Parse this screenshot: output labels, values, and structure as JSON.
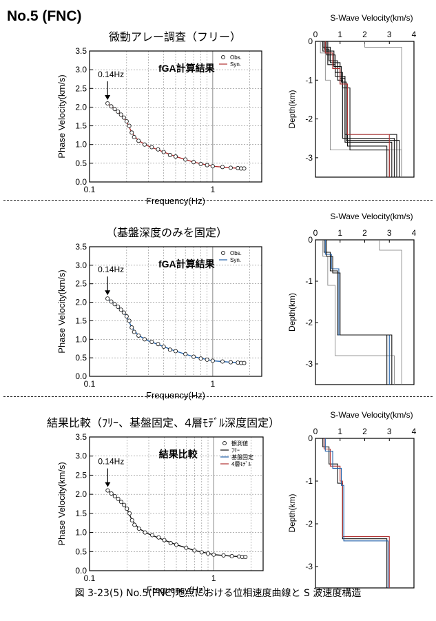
{
  "document": {
    "title": "No.5 (FNC)",
    "caption": "図 3-23(5)  No.5(FNC)地点における位相速度曲線と S 波速度構造"
  },
  "colors": {
    "obs": "#222222",
    "syn_red": "#b03030",
    "syn_blue": "#1f5fa8",
    "grid": "#888888"
  },
  "sections": [
    {
      "title": "微動アレー調査（フリー）",
      "vs_title": "S-Wave Velocity(km/s)"
    },
    {
      "title": "（基盤深度のみを固定）",
      "vs_title": "S-Wave Velocity(km/s)"
    },
    {
      "title": "結果比較（ﾌﾘｰ、基盤固定、4層ﾓﾃﾞﾙ深度固定）",
      "vs_title": "S-Wave Velocity(km/s)"
    }
  ],
  "chart_data": [
    {
      "type": "scatter",
      "inner_title": "fGA計算結果",
      "annotation": "0.14Hz",
      "xlabel": "Frequency(Hz)",
      "ylabel": "Phase Velocity(km/s)",
      "x_scale": "log",
      "xlim": [
        0.1,
        2.5
      ],
      "ylim": [
        0,
        3.5
      ],
      "x_ticks": [
        "0.1",
        "1"
      ],
      "y_ticks": [
        "0.0",
        "0.5",
        "1.0",
        "1.5",
        "2.0",
        "2.5",
        "3.0",
        "3.5"
      ],
      "legend": {
        "position": "top-right",
        "entries": [
          "Obs.",
          "Syn."
        ]
      },
      "grid": true,
      "obs": {
        "x": [
          0.14,
          0.15,
          0.16,
          0.17,
          0.18,
          0.19,
          0.2,
          0.21,
          0.22,
          0.23,
          0.25,
          0.28,
          0.32,
          0.36,
          0.4,
          0.45,
          0.5,
          0.6,
          0.7,
          0.8,
          0.9,
          1.0,
          1.2,
          1.4,
          1.6,
          1.7,
          1.8
        ],
        "y": [
          2.1,
          2.02,
          1.95,
          1.88,
          1.8,
          1.72,
          1.62,
          1.5,
          1.32,
          1.2,
          1.1,
          1.0,
          0.93,
          0.87,
          0.8,
          0.72,
          0.68,
          0.6,
          0.53,
          0.48,
          0.45,
          0.42,
          0.4,
          0.38,
          0.37,
          0.36,
          0.36
        ]
      },
      "syn": {
        "name": "Syn.",
        "color": "red",
        "x": [
          0.14,
          0.16,
          0.18,
          0.2,
          0.22,
          0.25,
          0.3,
          0.4,
          0.5,
          0.7,
          1.0,
          1.4,
          1.8
        ],
        "y": [
          2.1,
          1.95,
          1.8,
          1.62,
          1.32,
          1.1,
          0.96,
          0.8,
          0.68,
          0.53,
          0.42,
          0.38,
          0.36
        ]
      }
    },
    {
      "type": "line",
      "xlabel": "S-Wave Velocity(km/s)",
      "ylabel": "Depth(km)",
      "xlim": [
        0,
        4
      ],
      "ylim": [
        -3.5,
        0
      ],
      "x_ticks": [
        "0",
        "1",
        "2",
        "3",
        "4"
      ],
      "y_ticks": [
        "0",
        "-1",
        "-2",
        "-3"
      ],
      "profiles": [
        {
          "color": "black",
          "vs": [
            0.3,
            0.5,
            0.8,
            1.2,
            3.1
          ],
          "bottoms": [
            0.25,
            0.6,
            0.9,
            2.6,
            3.5
          ]
        },
        {
          "color": "black",
          "vs": [
            0.35,
            0.55,
            0.9,
            1.1,
            3.2
          ],
          "bottoms": [
            0.2,
            0.5,
            1.0,
            2.5,
            3.5
          ]
        },
        {
          "color": "black",
          "vs": [
            0.4,
            0.7,
            1.0,
            1.3,
            2.9
          ],
          "bottoms": [
            0.3,
            0.7,
            1.1,
            2.7,
            3.5
          ]
        },
        {
          "color": "black",
          "vs": [
            0.3,
            0.6,
            1.0,
            1.2,
            3.3
          ],
          "bottoms": [
            0.15,
            0.55,
            0.95,
            2.4,
            3.5
          ]
        },
        {
          "color": "black",
          "vs": [
            0.45,
            0.8,
            1.1,
            1.4,
            3.0
          ],
          "bottoms": [
            0.35,
            0.8,
            1.2,
            2.8,
            3.5
          ]
        },
        {
          "color": "black",
          "vs": [
            0.5,
            0.75,
            1.05,
            1.25,
            3.4
          ],
          "bottoms": [
            0.25,
            0.65,
            1.05,
            2.55,
            3.5
          ]
        },
        {
          "color": "red",
          "vs": [
            0.4,
            0.7,
            1.0,
            1.3,
            3.0
          ],
          "bottoms": [
            0.3,
            0.7,
            1.1,
            2.4,
            3.5
          ]
        }
      ],
      "bounds": [
        {
          "vs": [
            0.2,
            0.4,
            0.6,
            3.5
          ],
          "bottoms": [
            0.3,
            1.0,
            2.8,
            3.5
          ]
        },
        {
          "vs": [
            2.0,
            3.5
          ],
          "bottoms": [
            0.15,
            3.5
          ]
        }
      ]
    },
    {
      "type": "scatter",
      "inner_title": "fGA計算結果",
      "annotation": "0.14Hz",
      "xlabel": "Frequency(Hz)",
      "ylabel": "Phase Velocity(km/s)",
      "x_scale": "log",
      "xlim": [
        0.1,
        2.5
      ],
      "ylim": [
        0,
        3.5
      ],
      "x_ticks": [
        "0.1",
        "1"
      ],
      "y_ticks": [
        "0.0",
        "0.5",
        "1.0",
        "1.5",
        "2.0",
        "2.5",
        "3.0",
        "3.5"
      ],
      "legend": {
        "position": "top-right",
        "entries": [
          "Obs.",
          "Syn."
        ]
      },
      "grid": true,
      "obs": {
        "x": [
          0.14,
          0.15,
          0.16,
          0.17,
          0.18,
          0.19,
          0.2,
          0.21,
          0.22,
          0.23,
          0.25,
          0.28,
          0.32,
          0.36,
          0.4,
          0.45,
          0.5,
          0.6,
          0.7,
          0.8,
          0.9,
          1.0,
          1.2,
          1.4,
          1.6,
          1.7,
          1.8
        ],
        "y": [
          2.1,
          2.02,
          1.95,
          1.88,
          1.8,
          1.72,
          1.62,
          1.5,
          1.32,
          1.2,
          1.1,
          1.0,
          0.93,
          0.87,
          0.8,
          0.72,
          0.68,
          0.6,
          0.53,
          0.48,
          0.45,
          0.42,
          0.4,
          0.38,
          0.37,
          0.36,
          0.36
        ]
      },
      "syn": {
        "name": "Syn.",
        "color": "blue",
        "x": [
          0.14,
          0.16,
          0.18,
          0.2,
          0.22,
          0.25,
          0.3,
          0.4,
          0.5,
          0.7,
          1.0,
          1.4,
          1.8
        ],
        "y": [
          2.1,
          1.95,
          1.8,
          1.62,
          1.32,
          1.1,
          0.96,
          0.8,
          0.68,
          0.53,
          0.42,
          0.38,
          0.36
        ]
      }
    },
    {
      "type": "line",
      "xlabel": "S-Wave Velocity(km/s)",
      "ylabel": "Depth(km)",
      "xlim": [
        0,
        4
      ],
      "ylim": [
        -3.5,
        0
      ],
      "x_ticks": [
        "0",
        "1",
        "2",
        "3",
        "4"
      ],
      "y_ticks": [
        "0",
        "-1",
        "-2",
        "-3"
      ],
      "profiles": [
        {
          "color": "black",
          "vs": [
            0.35,
            0.6,
            0.9,
            2.9
          ],
          "bottoms": [
            0.3,
            0.75,
            2.3,
            3.5
          ]
        },
        {
          "color": "blue",
          "vs": [
            0.4,
            0.65,
            0.95,
            3.0
          ],
          "bottoms": [
            0.35,
            0.7,
            2.3,
            3.5
          ]
        },
        {
          "color": "black",
          "vs": [
            0.45,
            0.7,
            1.0,
            3.1
          ],
          "bottoms": [
            0.4,
            0.8,
            2.3,
            3.5
          ]
        }
      ],
      "bounds": [
        {
          "vs": [
            0.3,
            0.5,
            0.8,
            3.2
          ],
          "bottoms": [
            0.4,
            1.1,
            2.8,
            3.5
          ]
        },
        {
          "vs": [
            2.6,
            3.5
          ],
          "bottoms": [
            0.25,
            3.5
          ]
        }
      ]
    },
    {
      "type": "scatter",
      "inner_title": "結果比較",
      "annotation": "0.14Hz",
      "xlabel": "Frequency(Hz)",
      "ylabel": "Phase Velocity(km/s)",
      "x_scale": "log",
      "xlim": [
        0.1,
        2.5
      ],
      "ylim": [
        0,
        3.5
      ],
      "x_ticks": [
        "0.1",
        "1"
      ],
      "y_ticks": [
        "0.0",
        "0.5",
        "1.0",
        "1.5",
        "2.0",
        "2.5",
        "3.0",
        "3.5"
      ],
      "legend": {
        "position": "top-right",
        "entries": [
          "観測値",
          "ﾌﾘｰ",
          "基盤固定",
          "4層ﾓﾃﾞﾙ"
        ]
      },
      "grid": true,
      "obs": {
        "x": [
          0.14,
          0.15,
          0.16,
          0.17,
          0.18,
          0.19,
          0.2,
          0.21,
          0.22,
          0.23,
          0.25,
          0.28,
          0.32,
          0.36,
          0.4,
          0.45,
          0.5,
          0.6,
          0.7,
          0.8,
          0.9,
          1.0,
          1.2,
          1.4,
          1.6,
          1.7,
          1.8
        ],
        "y": [
          2.1,
          2.02,
          1.95,
          1.88,
          1.8,
          1.72,
          1.62,
          1.5,
          1.32,
          1.2,
          1.1,
          1.0,
          0.93,
          0.87,
          0.8,
          0.72,
          0.68,
          0.6,
          0.53,
          0.48,
          0.45,
          0.42,
          0.4,
          0.38,
          0.37,
          0.36,
          0.36
        ]
      },
      "syn": {
        "name": "ﾌﾘｰ",
        "color": "black",
        "x": [
          0.14,
          0.16,
          0.18,
          0.2,
          0.22,
          0.25,
          0.3,
          0.4,
          0.5,
          0.7,
          1.0,
          1.4,
          1.8
        ],
        "y": [
          2.1,
          1.95,
          1.8,
          1.62,
          1.32,
          1.1,
          0.96,
          0.8,
          0.68,
          0.53,
          0.42,
          0.38,
          0.36
        ]
      }
    },
    {
      "type": "line",
      "xlabel": "S-Wave Velocity(km/s)",
      "ylabel": "Depth(km)",
      "xlim": [
        0,
        4
      ],
      "ylim": [
        -3.5,
        0
      ],
      "x_ticks": [
        "0",
        "1",
        "2",
        "3",
        "4"
      ],
      "y_ticks": [
        "0",
        "-1",
        "-2",
        "-3"
      ],
      "profiles": [
        {
          "color": "black",
          "vs": [
            0.3,
            0.55,
            0.9,
            1.1,
            2.9
          ],
          "bottoms": [
            0.2,
            0.6,
            1.05,
            2.35,
            3.5
          ]
        },
        {
          "color": "red",
          "vs": [
            0.35,
            0.6,
            1.0,
            1.1,
            3.0
          ],
          "bottoms": [
            0.25,
            0.65,
            1.0,
            2.3,
            3.5
          ]
        },
        {
          "color": "blue",
          "vs": [
            0.4,
            0.7,
            1.05,
            1.15,
            2.95
          ],
          "bottoms": [
            0.3,
            0.7,
            1.1,
            2.4,
            3.5
          ]
        }
      ],
      "bounds": []
    }
  ]
}
